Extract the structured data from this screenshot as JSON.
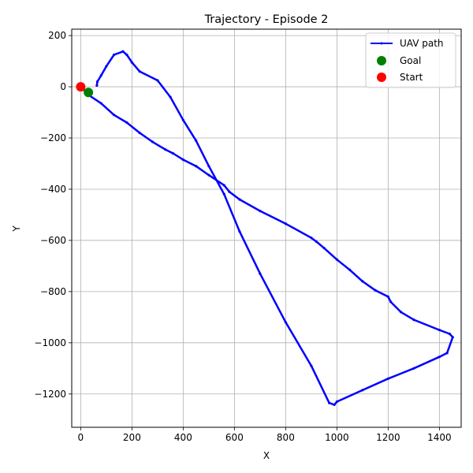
{
  "chart_data": {
    "type": "line",
    "title": "Trajectory - Episode 2",
    "xlabel": "X",
    "ylabel": "Y",
    "xlim": [
      -35,
      1485
    ],
    "ylim": [
      -1330,
      225
    ],
    "xticks": [
      0,
      200,
      400,
      600,
      800,
      1000,
      1200,
      1400
    ],
    "yticks": [
      200,
      0,
      -200,
      -400,
      -600,
      -800,
      -1000,
      -1200
    ],
    "xtick_labels": [
      "0",
      "200",
      "400",
      "600",
      "800",
      "1000",
      "1200",
      "1400"
    ],
    "ytick_labels": [
      "200",
      "0",
      "−200",
      "−400",
      "−600",
      "−800",
      "−1000",
      "−1200"
    ],
    "grid": true,
    "legend_position": "top-right",
    "series": [
      {
        "name": "UAV path",
        "type": "line",
        "color": "#0000ff",
        "x": [
          0,
          35,
          80,
          130,
          180,
          230,
          280,
          330,
          360,
          400,
          450,
          500,
          560,
          580,
          620,
          700,
          800,
          900,
          920,
          950,
          1000,
          1050,
          1100,
          1150,
          1200,
          1210,
          1250,
          1300,
          1400,
          1440,
          1452,
          1430,
          1400,
          1300,
          1200,
          1100,
          1000,
          990,
          970,
          900,
          800,
          700,
          620,
          560,
          500,
          450,
          400,
          350,
          300,
          230,
          200,
          180,
          165,
          130,
          100,
          80,
          65,
          63
        ],
        "y": [
          0,
          -35,
          -65,
          -110,
          -140,
          -180,
          -215,
          -245,
          -260,
          -285,
          -310,
          -345,
          -385,
          -410,
          -440,
          -485,
          -535,
          -590,
          -605,
          -630,
          -675,
          -715,
          -760,
          -795,
          -820,
          -840,
          -880,
          -910,
          -950,
          -965,
          -978,
          -1040,
          -1055,
          -1100,
          -1140,
          -1185,
          -1230,
          -1242,
          -1235,
          -1090,
          -920,
          -730,
          -565,
          -420,
          -310,
          -210,
          -130,
          -40,
          25,
          60,
          95,
          125,
          138,
          125,
          80,
          45,
          20,
          5
        ]
      },
      {
        "name": "Goal",
        "type": "scatter",
        "color": "#008000",
        "x": [
          30
        ],
        "y": [
          -22
        ]
      },
      {
        "name": "Start",
        "type": "scatter",
        "color": "#ff0000",
        "x": [
          0
        ],
        "y": [
          0
        ]
      }
    ]
  }
}
